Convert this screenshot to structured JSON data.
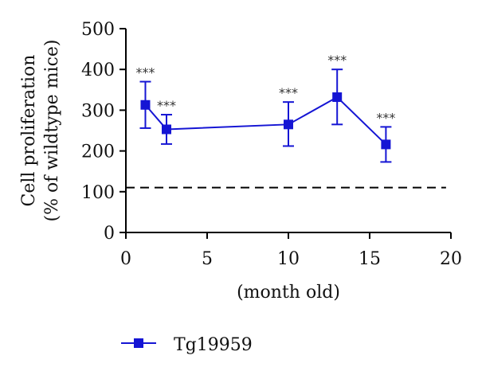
{
  "chart_data": {
    "type": "line",
    "title": "",
    "xlabel": "(month old)",
    "ylabel": [
      "Cell proliferation",
      "(% of wildtype mice)"
    ],
    "xlim": [
      0,
      20
    ],
    "ylim": [
      0,
      500
    ],
    "x_ticks": [
      0,
      5,
      10,
      15,
      20
    ],
    "y_ticks": [
      0,
      100,
      200,
      300,
      400,
      500
    ],
    "grid": false,
    "legend_position": "bottom-left",
    "series": [
      {
        "name": "Tg19959",
        "color": "#1515d4",
        "marker": "square",
        "x": [
          1.2,
          2.5,
          10,
          13,
          16
        ],
        "y": [
          313,
          253,
          265,
          332,
          216
        ],
        "y_err_low": [
          57,
          36,
          53,
          67,
          43
        ],
        "y_err_high": [
          57,
          36,
          55,
          68,
          43
        ],
        "annotations": [
          "***",
          "***",
          "***",
          "***",
          "***"
        ]
      }
    ],
    "reference_line": {
      "y": 110,
      "style": "dashed",
      "color": "#000000"
    }
  }
}
